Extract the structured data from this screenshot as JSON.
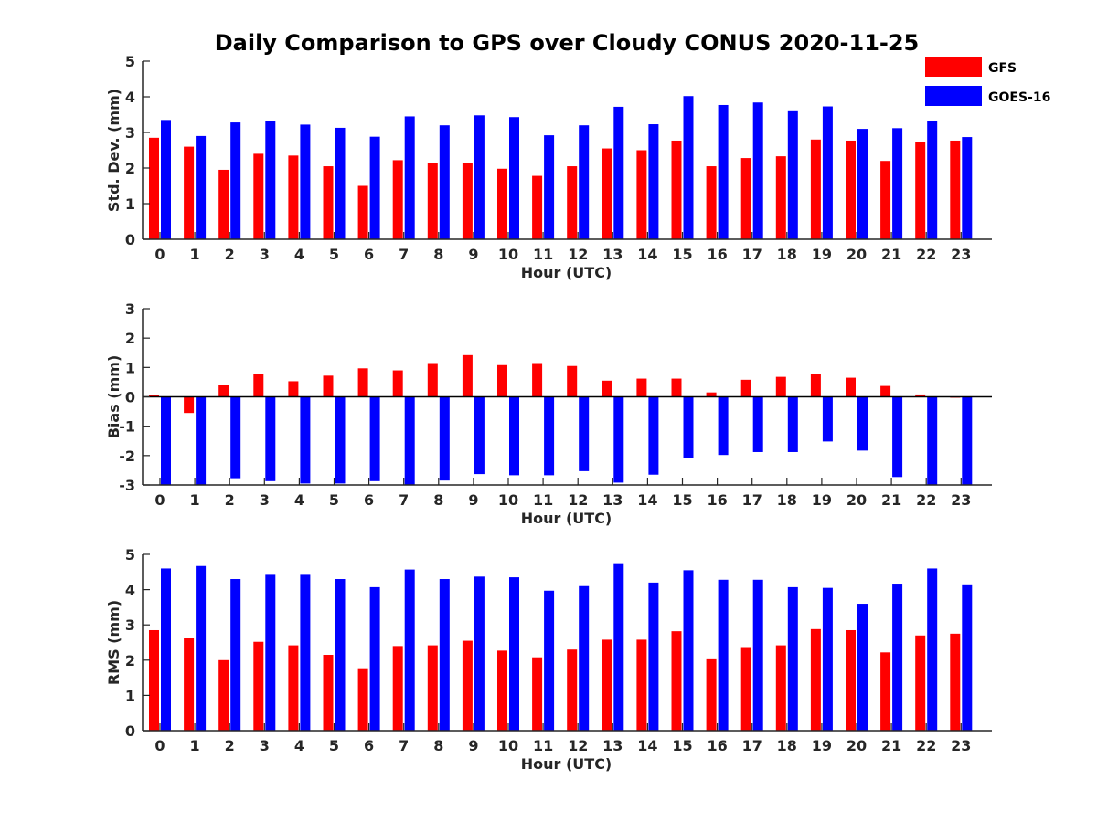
{
  "title": "Daily Comparison to GPS over Cloudy CONUS 2020-11-25",
  "legend": {
    "placement": "top-right",
    "entries": [
      {
        "name": "GFS",
        "color": "#ff0000"
      },
      {
        "name": "GOES-16",
        "color": "#0000ff"
      }
    ]
  },
  "chart_data": [
    {
      "type": "bar",
      "ylabel": "Std. Dev. (mm)",
      "xlabel": "Hour (UTC)",
      "ylim": [
        0,
        5
      ],
      "yticks": [
        0,
        1,
        2,
        3,
        4,
        5
      ],
      "categories": [
        "0",
        "1",
        "2",
        "3",
        "4",
        "5",
        "6",
        "7",
        "8",
        "9",
        "10",
        "11",
        "12",
        "13",
        "14",
        "15",
        "16",
        "17",
        "18",
        "19",
        "20",
        "21",
        "22",
        "23"
      ],
      "series": [
        {
          "name": "GFS",
          "color": "#ff0000",
          "values": [
            2.85,
            2.6,
            1.95,
            2.4,
            2.35,
            2.05,
            1.5,
            2.22,
            2.13,
            2.13,
            1.98,
            1.78,
            2.05,
            2.55,
            2.5,
            2.77,
            2.05,
            2.28,
            2.33,
            2.8,
            2.77,
            2.2,
            2.72,
            2.77
          ]
        },
        {
          "name": "GOES-16",
          "color": "#0000ff",
          "values": [
            3.35,
            2.9,
            3.28,
            3.33,
            3.22,
            3.13,
            2.88,
            3.45,
            3.2,
            3.48,
            3.43,
            2.92,
            3.2,
            3.72,
            3.23,
            4.02,
            3.77,
            3.84,
            3.62,
            3.73,
            3.1,
            3.12,
            3.33,
            2.87
          ]
        }
      ]
    },
    {
      "type": "bar",
      "ylabel": "Bias (mm)",
      "xlabel": "Hour (UTC)",
      "ylim": [
        -3,
        3
      ],
      "yticks": [
        -3,
        -2,
        -1,
        0,
        1,
        2,
        3
      ],
      "categories": [
        "0",
        "1",
        "2",
        "3",
        "4",
        "5",
        "6",
        "7",
        "8",
        "9",
        "10",
        "11",
        "12",
        "13",
        "14",
        "15",
        "16",
        "17",
        "18",
        "19",
        "20",
        "21",
        "22",
        "23"
      ],
      "series": [
        {
          "name": "GFS",
          "color": "#ff0000",
          "values": [
            0.05,
            -0.55,
            0.4,
            0.78,
            0.53,
            0.72,
            0.97,
            0.9,
            1.15,
            1.42,
            1.08,
            1.15,
            1.05,
            0.55,
            0.62,
            0.62,
            0.15,
            0.58,
            0.68,
            0.78,
            0.65,
            0.37,
            0.08,
            -0.03
          ]
        },
        {
          "name": "GOES-16",
          "color": "#0000ff",
          "values": [
            -3.0,
            -3.0,
            -2.77,
            -2.87,
            -2.95,
            -2.95,
            -2.87,
            -3.0,
            -2.85,
            -2.63,
            -2.67,
            -2.67,
            -2.53,
            -2.92,
            -2.65,
            -2.08,
            -1.98,
            -1.88,
            -1.88,
            -1.52,
            -1.83,
            -2.73,
            -3.0,
            -3.0
          ]
        }
      ]
    },
    {
      "type": "bar",
      "ylabel": "RMS (mm)",
      "xlabel": "Hour (UTC)",
      "ylim": [
        0,
        5
      ],
      "yticks": [
        0,
        1,
        2,
        3,
        4,
        5
      ],
      "categories": [
        "0",
        "1",
        "2",
        "3",
        "4",
        "5",
        "6",
        "7",
        "8",
        "9",
        "10",
        "11",
        "12",
        "13",
        "14",
        "15",
        "16",
        "17",
        "18",
        "19",
        "20",
        "21",
        "22",
        "23"
      ],
      "series": [
        {
          "name": "GFS",
          "color": "#ff0000",
          "values": [
            2.85,
            2.62,
            2.0,
            2.52,
            2.42,
            2.15,
            1.77,
            2.4,
            2.42,
            2.55,
            2.27,
            2.08,
            2.3,
            2.58,
            2.58,
            2.82,
            2.05,
            2.37,
            2.42,
            2.88,
            2.85,
            2.22,
            2.7,
            2.75
          ]
        },
        {
          "name": "GOES-16",
          "color": "#0000ff",
          "values": [
            4.6,
            4.67,
            4.3,
            4.42,
            4.42,
            4.3,
            4.07,
            4.57,
            4.3,
            4.37,
            4.35,
            3.97,
            4.1,
            4.75,
            4.2,
            4.55,
            4.28,
            4.28,
            4.07,
            4.05,
            3.6,
            4.17,
            4.6,
            4.15
          ]
        }
      ]
    }
  ]
}
